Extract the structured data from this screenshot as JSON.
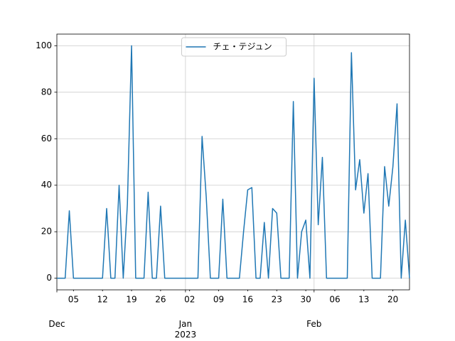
{
  "chart_data": {
    "type": "line",
    "x": [
      "2022-12-01",
      "2022-12-02",
      "2022-12-03",
      "2022-12-04",
      "2022-12-05",
      "2022-12-06",
      "2022-12-07",
      "2022-12-08",
      "2022-12-09",
      "2022-12-10",
      "2022-12-11",
      "2022-12-12",
      "2022-12-13",
      "2022-12-14",
      "2022-12-15",
      "2022-12-16",
      "2022-12-17",
      "2022-12-18",
      "2022-12-19",
      "2022-12-20",
      "2022-12-21",
      "2022-12-22",
      "2022-12-23",
      "2022-12-24",
      "2022-12-25",
      "2022-12-26",
      "2022-12-27",
      "2022-12-28",
      "2022-12-29",
      "2022-12-30",
      "2022-12-31",
      "2023-01-01",
      "2023-01-02",
      "2023-01-03",
      "2023-01-04",
      "2023-01-05",
      "2023-01-06",
      "2023-01-07",
      "2023-01-08",
      "2023-01-09",
      "2023-01-10",
      "2023-01-11",
      "2023-01-12",
      "2023-01-13",
      "2023-01-14",
      "2023-01-15",
      "2023-01-16",
      "2023-01-17",
      "2023-01-18",
      "2023-01-19",
      "2023-01-20",
      "2023-01-21",
      "2023-01-22",
      "2023-01-23",
      "2023-01-24",
      "2023-01-25",
      "2023-01-26",
      "2023-01-27",
      "2023-01-28",
      "2023-01-29",
      "2023-01-30",
      "2023-01-31",
      "2023-02-01",
      "2023-02-02",
      "2023-02-03",
      "2023-02-04",
      "2023-02-05",
      "2023-02-06",
      "2023-02-07",
      "2023-02-08",
      "2023-02-09",
      "2023-02-10",
      "2023-02-11",
      "2023-02-12",
      "2023-02-13",
      "2023-02-14",
      "2023-02-15",
      "2023-02-16",
      "2023-02-17",
      "2023-02-18",
      "2023-02-19",
      "2023-02-20",
      "2023-02-21",
      "2023-02-22",
      "2023-02-23",
      "2023-02-24"
    ],
    "series": [
      {
        "name": "チェ・テジュン",
        "color": "#1f77b4",
        "values": [
          0,
          0,
          0,
          29,
          0,
          0,
          0,
          0,
          0,
          0,
          0,
          0,
          30,
          0,
          0,
          40,
          0,
          32,
          100,
          0,
          0,
          0,
          37,
          0,
          0,
          31,
          0,
          0,
          0,
          0,
          0,
          0,
          0,
          0,
          0,
          61,
          35,
          0,
          0,
          0,
          34,
          0,
          0,
          0,
          0,
          20,
          38,
          39,
          0,
          0,
          24,
          0,
          30,
          28,
          0,
          0,
          0,
          76,
          0,
          20,
          25,
          0,
          86,
          23,
          52,
          0,
          0,
          0,
          0,
          0,
          0,
          97,
          38,
          51,
          28,
          45,
          0,
          0,
          0,
          48,
          31,
          48,
          75,
          0,
          25,
          0
        ]
      }
    ],
    "xlim": [
      "2022-12-01",
      "2023-02-24"
    ],
    "xticks": [
      {
        "value": "2022-12-01",
        "label": "Dec"
      },
      {
        "value": "2023-01-01",
        "label": "Jan\n2023"
      },
      {
        "value": "2023-02-01",
        "label": "Feb"
      }
    ],
    "xticks_minor": [
      {
        "value": "2022-12-05",
        "label": "05"
      },
      {
        "value": "2022-12-12",
        "label": "12"
      },
      {
        "value": "2022-12-19",
        "label": "19"
      },
      {
        "value": "2022-12-26",
        "label": "26"
      },
      {
        "value": "2023-01-02",
        "label": "02"
      },
      {
        "value": "2023-01-09",
        "label": "09"
      },
      {
        "value": "2023-01-16",
        "label": "16"
      },
      {
        "value": "2023-01-23",
        "label": "23"
      },
      {
        "value": "2023-01-30",
        "label": "30"
      },
      {
        "value": "2023-02-06",
        "label": "06"
      },
      {
        "value": "2023-02-13",
        "label": "13"
      },
      {
        "value": "2023-02-20",
        "label": "20"
      }
    ],
    "ylim": [
      -5,
      105
    ],
    "yticks": [
      0,
      20,
      40,
      60,
      80,
      100
    ],
    "grid": true,
    "legend": "upper center"
  }
}
